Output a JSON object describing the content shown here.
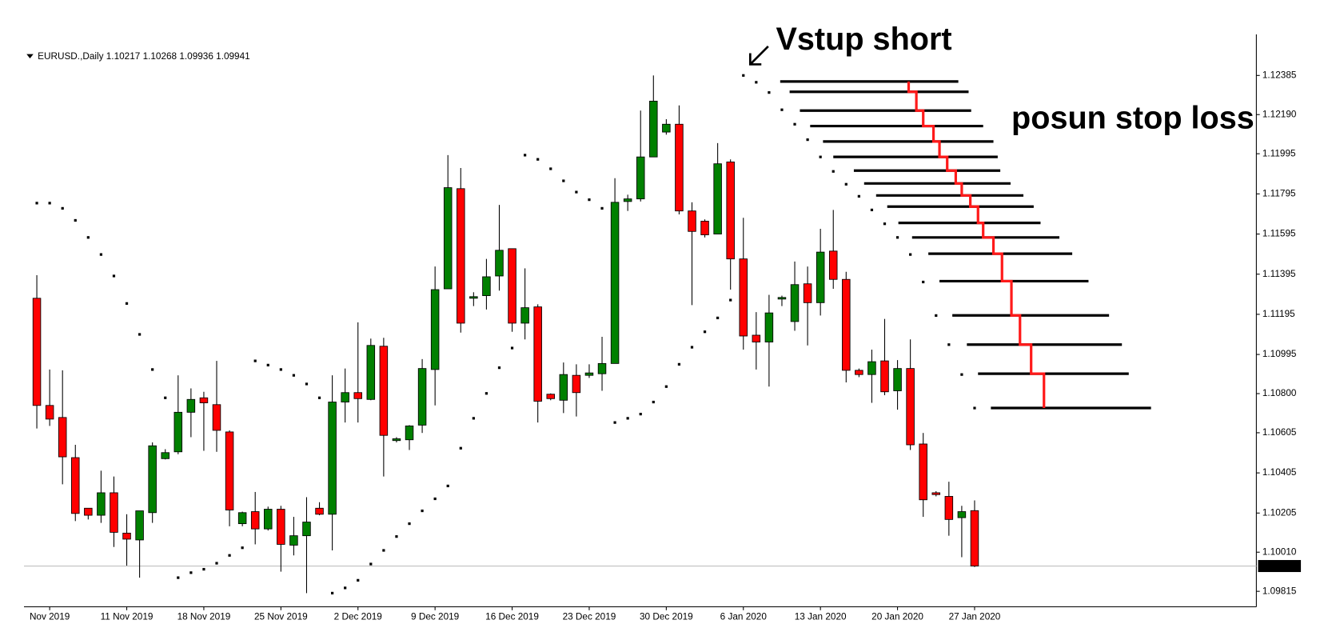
{
  "chart_data": {
    "type": "candlestick",
    "title": "EURUSD.,Daily  1.10217 1.10268 1.09936 1.09941",
    "annotations": [
      "Vstup short",
      "posun stop loss"
    ],
    "categories": [
      null,
      "Nov 2019",
      null,
      null,
      null,
      null,
      null,
      "11 Nov 2019",
      null,
      null,
      null,
      null,
      null,
      "18 Nov 2019",
      null,
      null,
      null,
      null,
      null,
      "25 Nov 2019",
      null,
      null,
      null,
      null,
      null,
      "2 Dec 2019",
      null,
      null,
      null,
      null,
      null,
      "9 Dec 2019",
      null,
      null,
      null,
      null,
      null,
      "16 Dec 2019",
      null,
      null,
      null,
      null,
      null,
      "23 Dec 2019",
      null,
      null,
      null,
      null,
      null,
      "30 Dec 2019",
      null,
      null,
      null,
      null,
      null,
      "6 Jan 2020",
      null,
      null,
      null,
      null,
      null,
      "13 Jan 2020",
      null,
      null,
      null,
      null,
      null,
      "20 Jan 2020",
      null,
      null,
      null,
      null,
      null,
      "27 Jan 2020"
    ],
    "open": [
      1.11275,
      1.10741,
      1.10681,
      1.10481,
      1.10229,
      1.10194,
      1.10306,
      1.10105,
      1.10071,
      1.10207,
      1.10476,
      1.1051,
      1.10707,
      1.10779,
      1.10745,
      1.10609,
      1.10152,
      1.10212,
      1.10126,
      1.10224,
      1.10045,
      1.10092,
      1.10229,
      1.10199,
      1.10758,
      1.10805,
      1.10771,
      1.11036,
      1.10566,
      1.1057,
      1.10643,
      1.1092,
      1.11322,
      1.11821,
      1.11275,
      1.11288,
      1.11386,
      1.11522,
      1.11151,
      1.11232,
      1.10797,
      1.10767,
      1.10891,
      1.10891,
      1.10899,
      1.1095,
      1.11757,
      1.1177,
      1.11979,
      1.12103,
      1.12142,
      1.1171,
      1.11659,
      1.11595,
      1.11954,
      1.11471,
      1.11091,
      1.11057,
      1.11271,
      1.11159,
      1.11347,
      1.11253,
      1.1151,
      1.11369,
      1.10916,
      1.10895,
      1.10963,
      1.10814,
      1.10925,
      1.10549,
      1.10306,
      1.10288,
      1.10182,
      1.10217
    ],
    "high": [
      1.1139,
      1.1092,
      1.10916,
      1.10545,
      1.10229,
      1.10416,
      1.10387,
      1.10199,
      1.10216,
      1.10557,
      1.10523,
      1.10891,
      1.10826,
      1.10809,
      1.10963,
      1.10617,
      1.10212,
      1.1031,
      1.10237,
      1.10241,
      1.10186,
      1.10284,
      1.10259,
      1.10891,
      1.10925,
      1.11155,
      1.11074,
      1.11078,
      1.10583,
      1.10643,
      1.10972,
      1.11433,
      1.11988,
      1.11924,
      1.11305,
      1.11471,
      1.1174,
      1.11522,
      1.11424,
      1.11245,
      1.10801,
      1.10955,
      1.10946,
      1.10946,
      1.11083,
      1.11873,
      1.11791,
      1.1221,
      1.12385,
      1.12167,
      1.12236,
      1.11753,
      1.11668,
      1.12048,
      1.11967,
      1.11676,
      1.11206,
      1.11292,
      1.11288,
      1.11458,
      1.11433,
      1.11621,
      1.11715,
      1.11407,
      1.10925,
      1.11019,
      1.11172,
      1.10967,
      1.1107,
      1.10604,
      1.10314,
      1.10361,
      1.10241,
      1.10268
    ],
    "low": [
      1.10626,
      1.10639,
      1.10348,
      1.10165,
      1.10173,
      1.10156,
      1.10036,
      1.09943,
      1.09883,
      1.10156,
      1.10472,
      1.10498,
      1.10583,
      1.10515,
      1.1051,
      1.10139,
      1.10139,
      1.10049,
      1.10118,
      1.09913,
      1.09994,
      1.09806,
      1.10194,
      1.10019,
      1.10656,
      1.10656,
      1.10767,
      1.10387,
      1.10557,
      1.10519,
      1.10604,
      1.10741,
      1.11322,
      1.11104,
      1.11236,
      1.11219,
      1.11313,
      1.11108,
      1.1107,
      1.10656,
      1.10767,
      1.10703,
      1.10686,
      1.10878,
      1.10814,
      1.1095,
      1.1171,
      1.11757,
      1.11979,
      1.1209,
      1.11693,
      1.11241,
      1.11578,
      1.11595,
      1.11318,
      1.11019,
      1.1092,
      1.10835,
      1.11236,
      1.11113,
      1.1104,
      1.11189,
      1.11322,
      1.10856,
      1.10882,
      1.10754,
      1.10792,
      1.1072,
      1.10519,
      1.10186,
      1.10288,
      1.10092,
      1.09985,
      1.09936
    ],
    "close": [
      1.10741,
      1.10673,
      1.10485,
      1.10203,
      1.10194,
      1.10306,
      1.10109,
      1.10075,
      1.10216,
      1.1054,
      1.10506,
      1.10707,
      1.10771,
      1.10754,
      1.10617,
      1.1022,
      1.10207,
      1.10126,
      1.10224,
      1.10049,
      1.10092,
      1.1016,
      1.10199,
      1.10758,
      1.10805,
      1.10775,
      1.1104,
      1.10592,
      1.10575,
      1.10639,
      1.10925,
      1.11318,
      1.11826,
      1.11151,
      1.11283,
      1.11382,
      1.11514,
      1.11151,
      1.11228,
      1.10762,
      1.10775,
      1.10895,
      1.10805,
      1.10903,
      1.1095,
      1.11753,
      1.1177,
      1.11979,
      1.12257,
      1.12142,
      1.1171,
      1.11608,
      1.11591,
      1.11945,
      1.11471,
      1.11087,
      1.11057,
      1.11202,
      1.11279,
      1.11343,
      1.11253,
      1.11505,
      1.11369,
      1.10916,
      1.10895,
      1.10959,
      1.10809,
      1.10925,
      1.10545,
      1.10271,
      1.10297,
      1.10173,
      1.10212,
      1.09941
    ],
    "sar": [
      1.11749,
      1.11749,
      1.11723,
      1.11663,
      1.11578,
      1.11493,
      1.11386,
      1.11249,
      1.11095,
      1.1092,
      1.10779,
      1.09883,
      1.09908,
      1.09925,
      1.09955,
      1.09994,
      1.10032,
      1.10963,
      1.10942,
      1.1092,
      1.10891,
      1.10848,
      1.10779,
      1.09806,
      1.09832,
      1.0987,
      1.09951,
      1.10019,
      1.10088,
      1.10152,
      1.10216,
      1.10276,
      1.1034,
      1.10528,
      1.10677,
      1.10801,
      1.10929,
      1.11027,
      1.11988,
      1.11967,
      1.1192,
      1.1186,
      1.11804,
      1.11766,
      1.11723,
      1.10656,
      1.10677,
      1.10698,
      1.10758,
      1.10835,
      1.10946,
      1.11031,
      1.11108,
      1.11177,
      1.11266,
      1.12385,
      1.12351,
      1.123,
      1.12214,
      1.12142,
      1.12065,
      1.11979,
      1.11907,
      1.11843,
      1.11783,
      1.11715,
      1.11646,
      1.11578,
      1.11493,
      1.11356,
      1.11189,
      1.11044,
      1.10895,
      1.10728
    ],
    "up_color": "#008000",
    "down_color": "#ff0000",
    "sar_color": "#000000",
    "last_price": 1.09941,
    "ylim": [
      1.09738,
      1.12547
    ],
    "yticks": [
      1.12385,
      {
        "value": 1.1219,
        "label": "1.12190"
      },
      1.11995,
      1.11795,
      1.11595,
      1.11395,
      1.11195,
      1.10995,
      {
        "value": 1.108,
        "label": "1.10800"
      },
      1.10605,
      1.10405,
      1.10205,
      {
        "value": 1.1001,
        "label": "1.10010"
      },
      1.09815
    ]
  }
}
